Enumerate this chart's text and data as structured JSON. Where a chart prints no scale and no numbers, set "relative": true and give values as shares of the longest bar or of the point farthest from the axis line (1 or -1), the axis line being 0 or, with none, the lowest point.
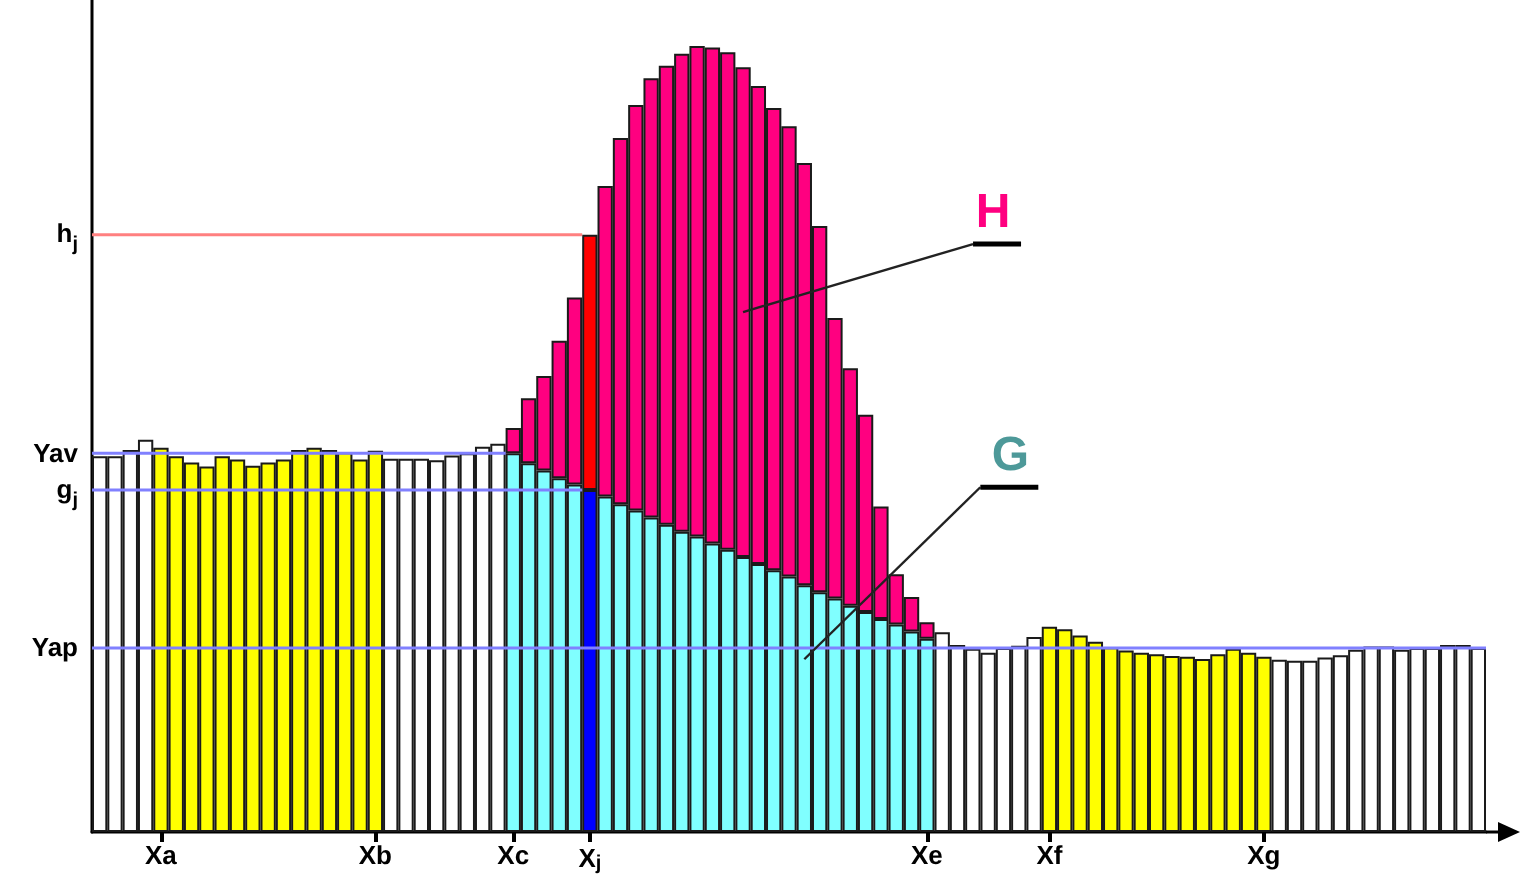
{
  "chart_data": {
    "type": "bar",
    "relative": true,
    "stacked": true,
    "categories": [
      null,
      null,
      null,
      null,
      "Xa",
      null,
      null,
      null,
      null,
      null,
      null,
      null,
      null,
      null,
      null,
      null,
      null,
      null,
      "Xb",
      null,
      null,
      null,
      null,
      null,
      null,
      null,
      null,
      "Xc",
      null,
      null,
      null,
      null,
      "X$_{j}$",
      null,
      null,
      null,
      null,
      null,
      null,
      null,
      null,
      null,
      null,
      null,
      null,
      null,
      null,
      null,
      null,
      null,
      null,
      null,
      null,
      null,
      "Xe",
      null,
      null,
      null,
      null,
      null,
      null,
      null,
      "Xf",
      null,
      null,
      null,
      null,
      null,
      null,
      null,
      null,
      null,
      null,
      null,
      null,
      null,
      "Xg",
      null,
      null,
      null,
      null,
      null,
      null,
      null,
      null,
      null,
      null,
      null,
      null,
      null,
      null
    ],
    "series": [
      {
        "values": [
          0.478,
          0.478,
          0.486,
          0.499,
          0.489,
          0.478,
          0.47,
          0.465,
          0.478,
          0.474,
          0.466,
          0.47,
          0.474,
          0.486,
          0.489,
          0.486,
          0.483,
          0.474,
          0.485,
          0.475,
          0.475,
          0.475,
          0.473,
          0.479,
          0.482,
          0.49,
          0.494,
          null,
          null,
          null,
          null,
          null,
          null,
          null,
          null,
          null,
          null,
          null,
          null,
          null,
          null,
          null,
          null,
          null,
          null,
          null,
          null,
          null,
          null,
          null,
          null,
          null,
          null,
          null,
          null,
          0.254,
          0.238,
          0.233,
          0.228,
          0.234,
          0.237,
          0.248,
          0.261,
          0.258,
          0.25,
          0.242,
          0.235,
          0.231,
          0.228,
          0.226,
          0.224,
          0.223,
          0.22,
          0.226,
          0.233,
          0.228,
          0.223,
          0.219,
          0.218,
          0.218,
          0.222,
          0.225,
          0.232,
          0.236,
          0.236,
          0.232,
          0.234,
          0.234,
          0.238,
          0.238,
          0.234
        ],
        "colors": [
          "#ffffff",
          "#ffffff",
          "#ffffff",
          "#ffffff",
          "#ffff00",
          "#ffff00",
          "#ffff00",
          "#ffff00",
          "#ffff00",
          "#ffff00",
          "#ffff00",
          "#ffff00",
          "#ffff00",
          "#ffff00",
          "#ffff00",
          "#ffff00",
          "#ffff00",
          "#ffff00",
          "#ffff00",
          "#ffffff",
          "#ffffff",
          "#ffffff",
          "#ffffff",
          "#ffffff",
          "#ffffff",
          "#ffffff",
          "#ffffff",
          null,
          null,
          null,
          null,
          null,
          null,
          null,
          null,
          null,
          null,
          null,
          null,
          null,
          null,
          null,
          null,
          null,
          null,
          null,
          null,
          null,
          null,
          null,
          null,
          null,
          null,
          null,
          null,
          "#ffffff",
          "#ffffff",
          "#ffffff",
          "#ffffff",
          "#ffffff",
          "#ffffff",
          "#ffffff",
          "#ffff00",
          "#ffff00",
          "#ffff00",
          "#ffff00",
          "#ffff00",
          "#ffff00",
          "#ffff00",
          "#ffff00",
          "#ffff00",
          "#ffff00",
          "#ffff00",
          "#ffff00",
          "#ffff00",
          "#ffff00",
          "#ffff00",
          "#ffffff",
          "#ffffff",
          "#ffffff",
          "#ffffff",
          "#ffffff",
          "#ffffff",
          "#ffffff",
          "#ffffff",
          "#ffffff",
          "#ffffff",
          "#ffffff",
          "#ffffff",
          "#ffffff",
          "#ffffff"
        ]
      },
      {
        "name": "G",
        "color": "#80ffff",
        "values": [
          null,
          null,
          null,
          null,
          null,
          null,
          null,
          null,
          null,
          null,
          null,
          null,
          null,
          null,
          null,
          null,
          null,
          null,
          null,
          null,
          null,
          null,
          null,
          null,
          null,
          null,
          null,
          0.482,
          0.469,
          0.46,
          0.45,
          0.442,
          0.435,
          0.427,
          0.417,
          0.409,
          0.4,
          0.391,
          0.382,
          0.376,
          0.367,
          0.359,
          0.35,
          0.341,
          0.333,
          0.325,
          0.314,
          0.305,
          0.297,
          0.288,
          0.28,
          0.271,
          0.264,
          0.255,
          0.246,
          null,
          null,
          null,
          null,
          null,
          null,
          null,
          null,
          null,
          null,
          null,
          null,
          null,
          null,
          null,
          null,
          null,
          null,
          null,
          null,
          null,
          null,
          null,
          null,
          null,
          null,
          null,
          null,
          null,
          null,
          null,
          null,
          null,
          null,
          null,
          null
        ],
        "colors": [
          null,
          null,
          null,
          null,
          null,
          null,
          null,
          null,
          null,
          null,
          null,
          null,
          null,
          null,
          null,
          null,
          null,
          null,
          null,
          null,
          null,
          null,
          null,
          null,
          null,
          null,
          null,
          "#80ffff",
          "#80ffff",
          "#80ffff",
          "#80ffff",
          "#80ffff",
          "#0000ff",
          "#80ffff",
          "#80ffff",
          "#80ffff",
          "#80ffff",
          "#80ffff",
          "#80ffff",
          "#80ffff",
          "#80ffff",
          "#80ffff",
          "#80ffff",
          "#80ffff",
          "#80ffff",
          "#80ffff",
          "#80ffff",
          "#80ffff",
          "#80ffff",
          "#80ffff",
          "#80ffff",
          "#80ffff",
          "#80ffff",
          "#80ffff",
          "#80ffff",
          null,
          null,
          null,
          null,
          null,
          null,
          null,
          null,
          null,
          null,
          null,
          null,
          null,
          null,
          null,
          null,
          null,
          null,
          null,
          null,
          null,
          null,
          null,
          null,
          null,
          null,
          null,
          null,
          null,
          null,
          null,
          null,
          null,
          null,
          null,
          null
        ]
      },
      {
        "name": "H",
        "color": "#ff0080",
        "values": [
          null,
          null,
          null,
          null,
          null,
          null,
          null,
          null,
          null,
          null,
          null,
          null,
          null,
          null,
          null,
          null,
          null,
          null,
          null,
          null,
          null,
          null,
          null,
          null,
          null,
          null,
          null,
          0.032,
          0.083,
          0.12,
          0.175,
          0.238,
          0.325,
          0.395,
          0.466,
          0.516,
          0.559,
          0.584,
          0.608,
          0.624,
          0.631,
          0.633,
          0.623,
          0.608,
          0.588,
          0.573,
          0.537,
          0.466,
          0.357,
          0.302,
          0.251,
          0.143,
          0.064,
          0.044,
          0.021,
          null,
          null,
          null,
          null,
          null,
          null,
          null,
          null,
          null,
          null,
          null,
          null,
          null,
          null,
          null,
          null,
          null,
          null,
          null,
          null,
          null,
          null,
          null,
          null,
          null,
          null,
          null,
          null,
          null,
          null,
          null,
          null,
          null,
          null,
          null,
          null
        ],
        "colors": [
          null,
          null,
          null,
          null,
          null,
          null,
          null,
          null,
          null,
          null,
          null,
          null,
          null,
          null,
          null,
          null,
          null,
          null,
          null,
          null,
          null,
          null,
          null,
          null,
          null,
          null,
          null,
          "#ff0080",
          "#ff0080",
          "#ff0080",
          "#ff0080",
          "#ff0080",
          "#ff0000",
          "#ff0080",
          "#ff0080",
          "#ff0080",
          "#ff0080",
          "#ff0080",
          "#ff0080",
          "#ff0080",
          "#ff0080",
          "#ff0080",
          "#ff0080",
          "#ff0080",
          "#ff0080",
          "#ff0080",
          "#ff0080",
          "#ff0080",
          "#ff0080",
          "#ff0080",
          "#ff0080",
          "#ff0080",
          "#ff0080",
          "#ff0080",
          "#ff0080",
          null,
          null,
          null,
          null,
          null,
          null,
          null,
          null,
          null,
          null,
          null,
          null,
          null,
          null,
          null,
          null,
          null,
          null,
          null,
          null,
          null,
          null,
          null,
          null,
          null,
          null,
          null,
          null,
          null,
          null,
          null,
          null,
          null,
          null,
          null,
          null
        ]
      }
    ],
    "annotations": [
      {
        "text": "Yav",
        "x": "Xc",
        "y": 0.482
      },
      {
        "text": "g$_{j}$",
        "x": "X$_{j}$",
        "y": 0.435
      },
      {
        "text": "h$_{j}$",
        "x": "X$_{j}$",
        "y": 0.76
      }
    ],
    "ref_lines": [
      {
        "axis": "y",
        "value": 0.235,
        "label": "Yap",
        "color": "#8080ff"
      }
    ]
  }
}
